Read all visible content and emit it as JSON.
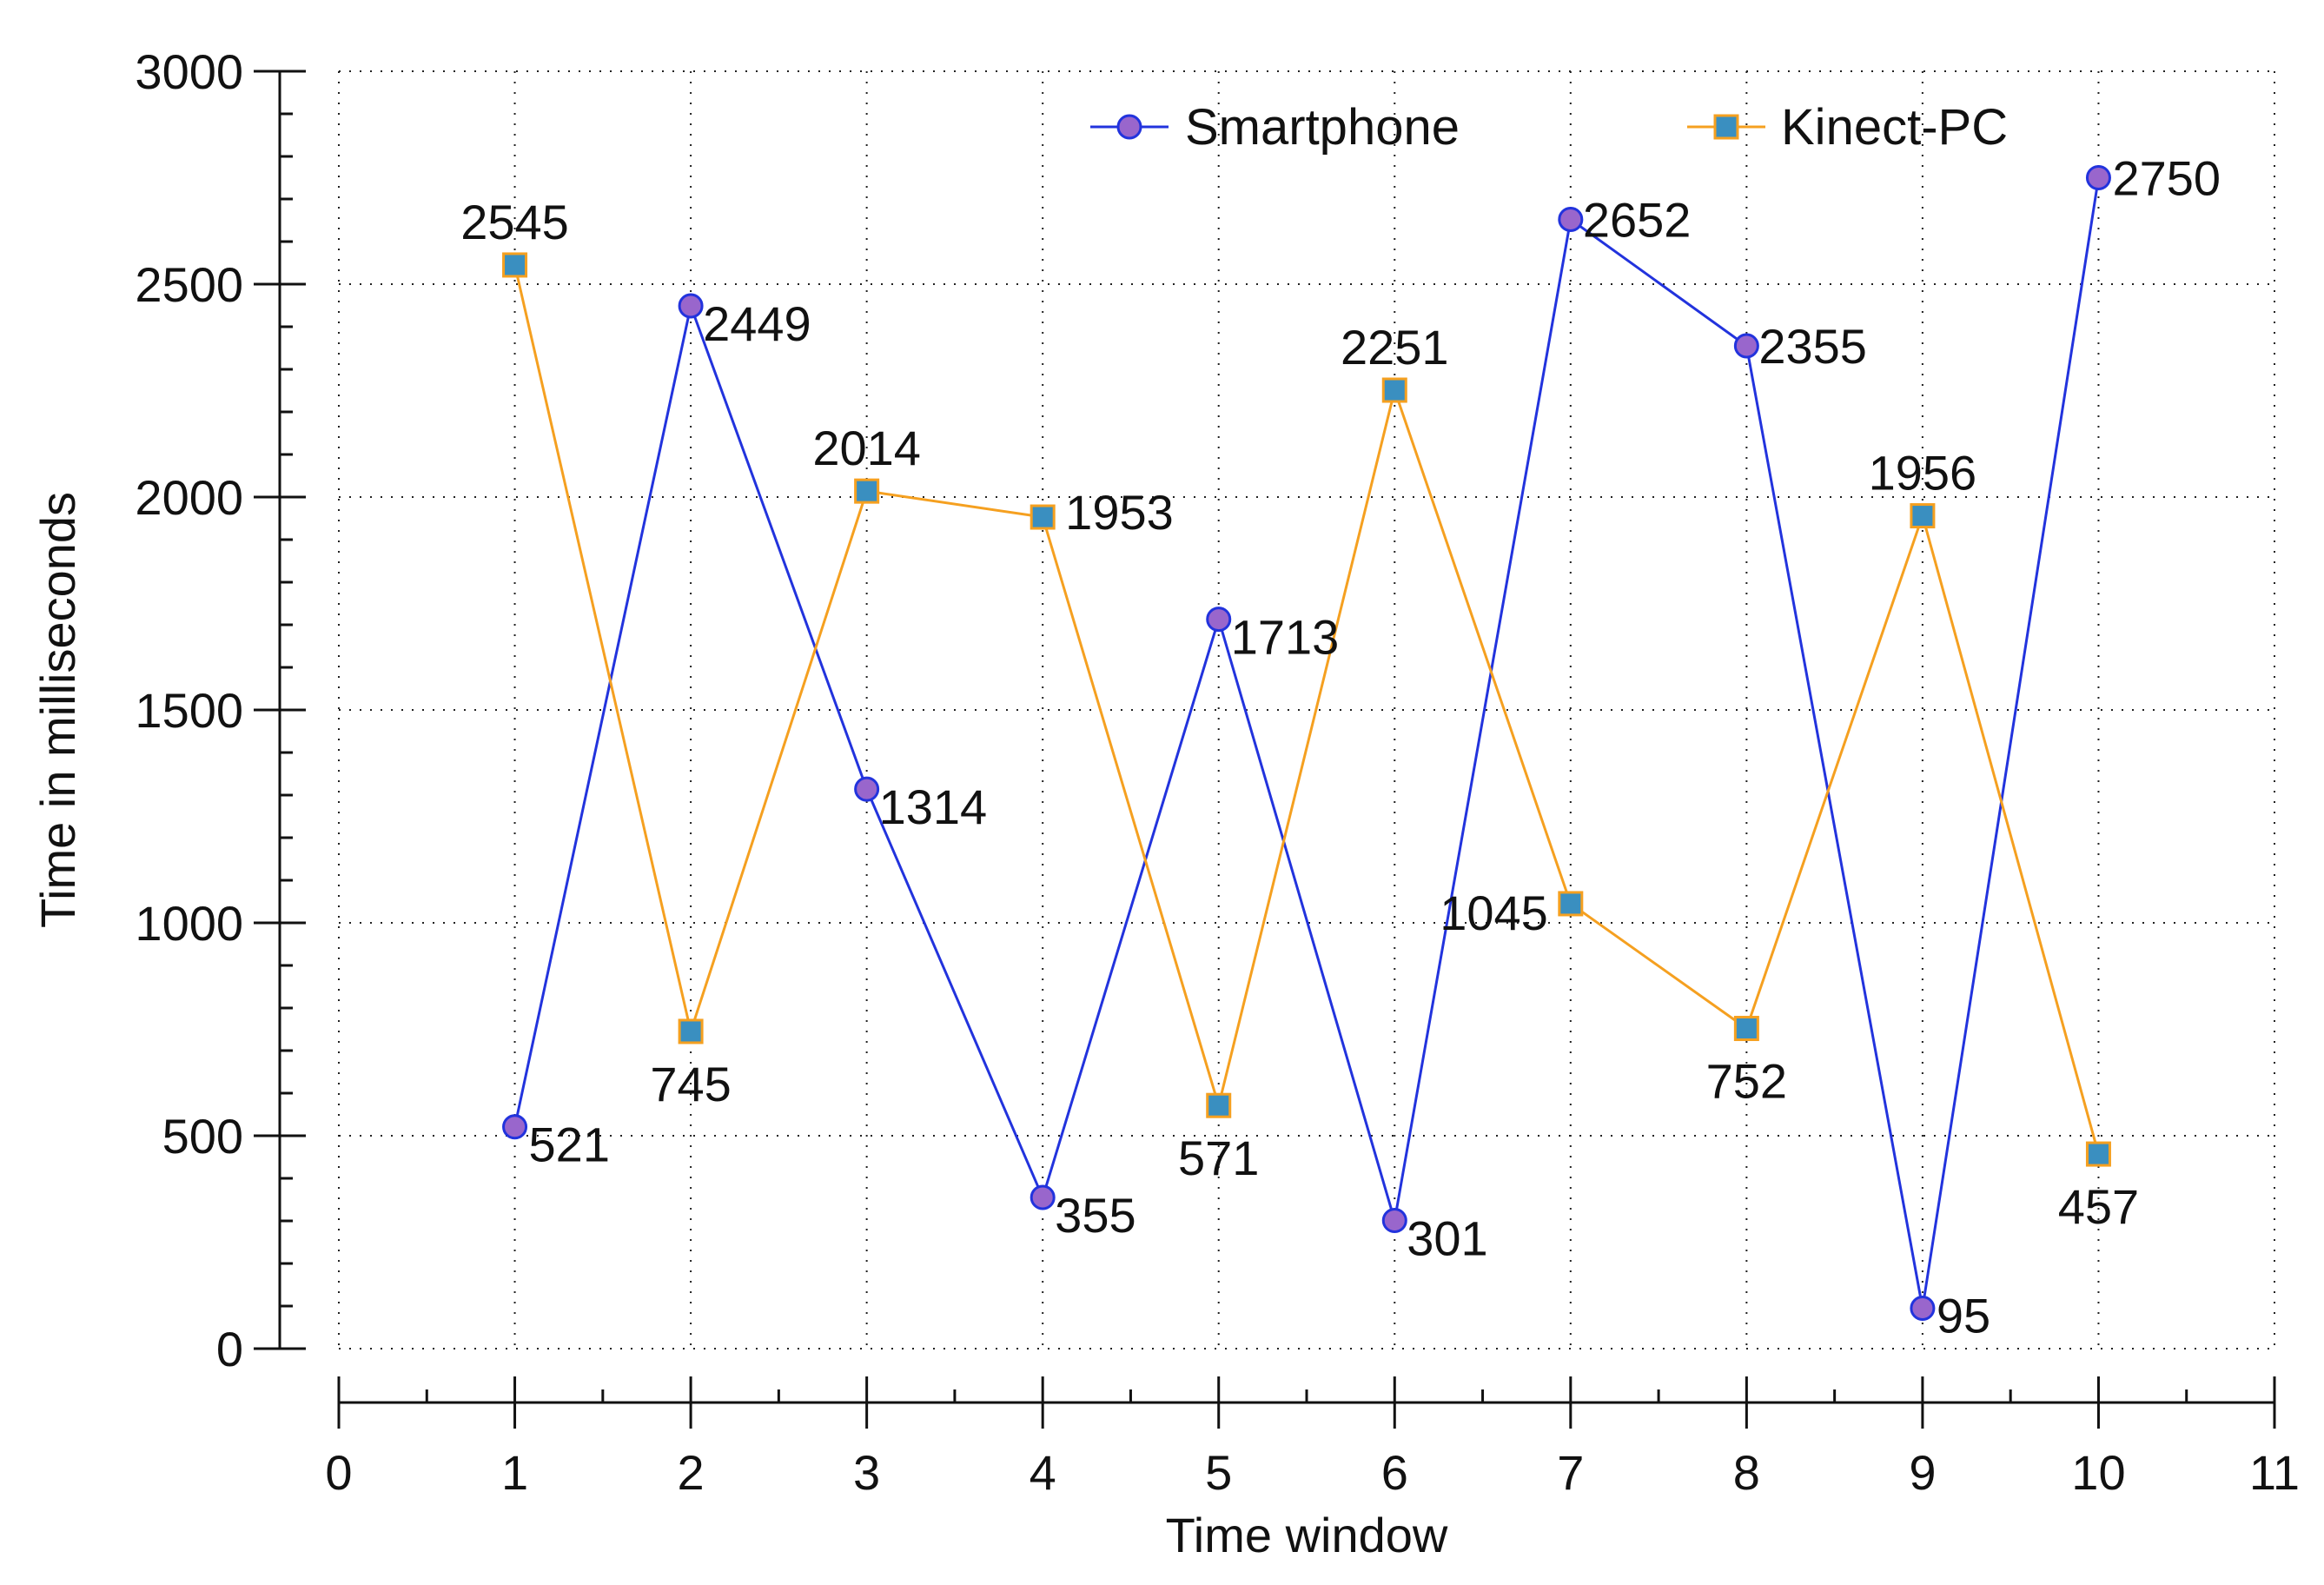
{
  "chart_data": {
    "type": "line",
    "xlabel": "Time window",
    "ylabel": "Time in milliseconds",
    "xlim": [
      0,
      11
    ],
    "ylim": [
      0,
      3000
    ],
    "x_ticks": [
      0,
      1,
      2,
      3,
      4,
      5,
      6,
      7,
      8,
      9,
      10,
      11
    ],
    "y_ticks": [
      0,
      500,
      1000,
      1500,
      2000,
      2500,
      3000
    ],
    "grid": true,
    "legend_position": "top-right",
    "x": [
      1,
      2,
      3,
      4,
      5,
      6,
      7,
      8,
      9,
      10
    ],
    "series": [
      {
        "name": "Smartphone",
        "marker": "circle",
        "line_color": "#2233dd",
        "marker_fill": "#9966cc",
        "values": [
          521,
          2449,
          1314,
          355,
          1713,
          301,
          2652,
          2355,
          95,
          2750
        ],
        "labels": [
          "521",
          "2449",
          "1314",
          "355",
          "1713",
          "301",
          "2652",
          "2355",
          "95",
          "2750"
        ]
      },
      {
        "name": "Kinect-PC",
        "marker": "square",
        "line_color": "#f5a020",
        "marker_fill": "#3a8fc0",
        "values": [
          2545,
          745,
          2014,
          1953,
          571,
          2251,
          1045,
          752,
          1956,
          457
        ],
        "labels": [
          "2545",
          "745",
          "2014",
          "1953",
          "571",
          "2251",
          "1045",
          "752",
          "1956",
          "457"
        ]
      }
    ]
  }
}
